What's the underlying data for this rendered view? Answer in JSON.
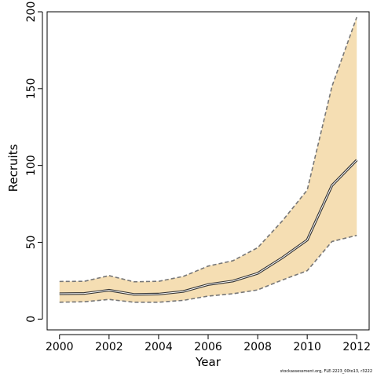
{
  "chart_data": {
    "type": "line",
    "title": "",
    "xlabel": "Year",
    "ylabel": "Recruits",
    "xlim": [
      1999.5,
      2012.5
    ],
    "ylim": [
      -7,
      200
    ],
    "x_ticks": [
      2000,
      2002,
      2004,
      2006,
      2008,
      2010,
      2012
    ],
    "y_ticks": [
      0,
      50,
      100,
      150,
      200
    ],
    "x": [
      2000,
      2001,
      2002,
      2003,
      2004,
      2005,
      2006,
      2007,
      2008,
      2009,
      2010,
      2011,
      2012
    ],
    "series": [
      {
        "values": [
          16.5,
          16.7,
          18.8,
          16.1,
          16.3,
          18.0,
          22.5,
          24.8,
          29.8,
          40.0,
          51.5,
          87.0,
          103.5
        ]
      },
      {
        "values": [
          11.0,
          11.3,
          12.8,
          11.0,
          11.0,
          12.2,
          15.0,
          16.5,
          19.0,
          25.5,
          31.5,
          50.5,
          54.5
        ]
      },
      {
        "values": [
          24.5,
          24.6,
          28.3,
          24.3,
          24.6,
          27.8,
          34.5,
          38.0,
          46.5,
          64.0,
          84.0,
          151.5,
          196.5
        ]
      }
    ],
    "band_color": "#f5deb3",
    "line_color": "#333333",
    "bound_color": "#777777",
    "grid": false,
    "legend": "none"
  },
  "footnote": "stockassessment.org, FLE-2223_00to13, r3222"
}
